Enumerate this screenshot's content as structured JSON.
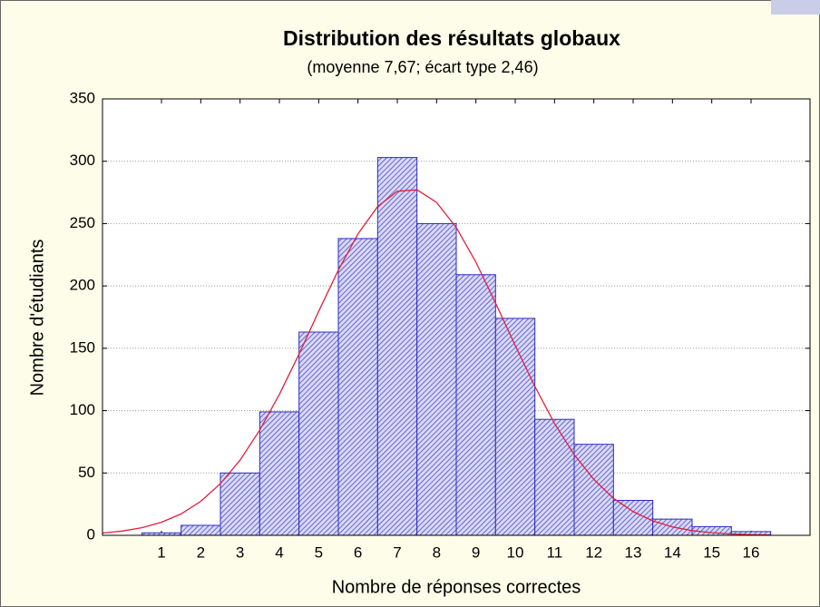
{
  "chart_data": {
    "type": "histogram",
    "title": "Distribution des résultats globaux",
    "subtitle": "(moyenne 7,67; écart type 2,46)",
    "x_label": "Nombre de réponses correctes",
    "y_label": "Nombre d'étudiants",
    "bins": [
      0.5,
      1.5,
      2.5,
      3.5,
      4.5,
      5.5,
      6.5,
      7.5,
      8.5,
      9.5,
      10.5,
      11.5,
      12.5,
      13.5,
      14.5,
      15.5,
      16.5
    ],
    "values": [
      2,
      8,
      50,
      99,
      163,
      238,
      303,
      250,
      209,
      174,
      93,
      73,
      28,
      13,
      7,
      3
    ],
    "color": "#2b2bc4",
    "curve": {
      "x": [
        -0.5,
        0,
        0.5,
        1,
        1.5,
        2,
        2.5,
        3,
        3.5,
        4,
        4.5,
        5,
        5.5,
        6,
        6.5,
        7,
        7.5,
        8,
        8.5,
        9,
        9.5,
        10,
        10.5,
        11,
        11.5,
        12,
        12.5,
        13,
        13.5,
        14,
        14.5,
        15,
        15.5,
        16,
        16.5
      ],
      "values": [
        1.8,
        3.4,
        6.1,
        10.5,
        17.2,
        27.3,
        41.4,
        60.3,
        84.3,
        113,
        145.4,
        179.6,
        212.7,
        241.7,
        263.7,
        275.9,
        277.1,
        267,
        246.9,
        219,
        186.3,
        152.2,
        119.3,
        89.7,
        64.7,
        44.8,
        29.7,
        19,
        11.6,
        6.8,
        3.8,
        2.1,
        1.1,
        0.5,
        0.2
      ],
      "color": "#e0203c"
    },
    "xlim": [
      -0.5,
      17.5
    ],
    "xticks": [
      1,
      2,
      3,
      4,
      5,
      6,
      7,
      8,
      9,
      10,
      11,
      12,
      13,
      14,
      15,
      16
    ],
    "ylim": [
      0,
      350
    ],
    "yticks": [
      0,
      50,
      100,
      150,
      200,
      250,
      300,
      350
    ],
    "grid": true
  }
}
